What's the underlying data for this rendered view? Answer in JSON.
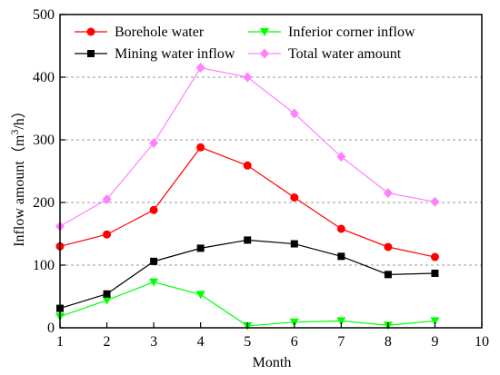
{
  "chart_data": {
    "type": "line",
    "xlabel": "Month",
    "ylabel_text": "Inflow amount（m",
    "ylabel_sup": "3",
    "ylabel_tail": "/h）",
    "xlim": [
      1,
      10
    ],
    "ylim": [
      0,
      500
    ],
    "xticks": [
      "1",
      "2",
      "3",
      "4",
      "5",
      "6",
      "7",
      "8",
      "9",
      "10"
    ],
    "yticks": [
      "0",
      "100",
      "200",
      "300",
      "400",
      "500"
    ],
    "grid": "horizontal dashed",
    "legend_position": "top",
    "series": [
      {
        "name": "Borehole water",
        "color": "#ff0000",
        "marker": "circle",
        "x": [
          1,
          2,
          3,
          4,
          5,
          6,
          7,
          8,
          9
        ],
        "y": [
          130,
          149,
          188,
          288,
          259,
          208,
          158,
          129,
          113
        ]
      },
      {
        "name": "Inferior corner inflow",
        "color": "#00ff00",
        "marker": "triangle-down",
        "x": [
          1,
          2,
          3,
          4,
          5,
          6,
          7,
          8,
          9
        ],
        "y": [
          18,
          44,
          73,
          53,
          3,
          9,
          11,
          4,
          11
        ]
      },
      {
        "name": "Mining water inflow",
        "color": "#000000",
        "marker": "square",
        "x": [
          1,
          2,
          3,
          4,
          5,
          6,
          7,
          8,
          9
        ],
        "y": [
          31,
          54,
          106,
          127,
          140,
          134,
          114,
          85,
          87
        ]
      },
      {
        "name": "Total water amount",
        "color": "#ff80ff",
        "marker": "diamond",
        "x": [
          1,
          2,
          3,
          4,
          5,
          6,
          7,
          8,
          9
        ],
        "y": [
          162,
          205,
          295,
          415,
          400,
          342,
          273,
          215,
          201
        ]
      }
    ]
  }
}
